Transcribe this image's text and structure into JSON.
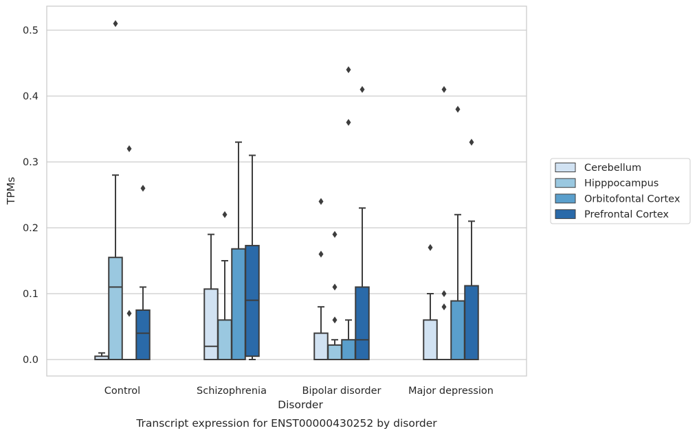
{
  "chart_data": {
    "type": "box",
    "title": "",
    "caption": "Transcript expression for ENST00000430252 by disorder",
    "xlabel": "Disorder",
    "ylabel": "TPMs",
    "ylim": [
      -0.025,
      0.537
    ],
    "yticks": [
      "0.0",
      "0.1",
      "0.2",
      "0.3",
      "0.4",
      "0.5"
    ],
    "ytick_values": [
      0.0,
      0.1,
      0.2,
      0.3,
      0.4,
      0.5
    ],
    "grid": "horizontal",
    "legend_position": "center-right outside",
    "categories": [
      "Control",
      "Schizophrenia",
      "Bipolar disorder",
      "Major depression"
    ],
    "series": [
      {
        "name": "Cerebellum",
        "color": "#d1e2f2",
        "boxes": [
          {
            "lower_whisker": 0.0,
            "q1": 0.0,
            "median": 0.0,
            "q3": 0.005,
            "upper_whisker": 0.01,
            "outliers": []
          },
          {
            "lower_whisker": 0.0,
            "q1": 0.0,
            "median": 0.02,
            "q3": 0.107,
            "upper_whisker": 0.19,
            "outliers": []
          },
          {
            "lower_whisker": 0.0,
            "q1": 0.0,
            "median": 0.0,
            "q3": 0.04,
            "upper_whisker": 0.08,
            "outliers": [
              0.16,
              0.24
            ]
          },
          {
            "lower_whisker": 0.0,
            "q1": 0.0,
            "median": 0.0,
            "q3": 0.06,
            "upper_whisker": 0.1,
            "outliers": [
              0.17
            ]
          }
        ]
      },
      {
        "name": "Hipppocampus",
        "color": "#9ac8e0",
        "boxes": [
          {
            "lower_whisker": 0.0,
            "q1": 0.0,
            "median": 0.11,
            "q3": 0.155,
            "upper_whisker": 0.28,
            "outliers": [
              0.51
            ]
          },
          {
            "lower_whisker": 0.0,
            "q1": 0.0,
            "median": 0.0,
            "q3": 0.06,
            "upper_whisker": 0.15,
            "outliers": [
              0.22
            ]
          },
          {
            "lower_whisker": 0.0,
            "q1": 0.0,
            "median": 0.0,
            "q3": 0.022,
            "upper_whisker": 0.03,
            "outliers": [
              0.06,
              0.11,
              0.19
            ]
          },
          {
            "lower_whisker": 0.0,
            "q1": 0.0,
            "median": 0.0,
            "q3": 0.0,
            "upper_whisker": 0.0,
            "outliers": [
              0.08,
              0.1,
              0.41
            ]
          }
        ]
      },
      {
        "name": "Orbitofontal Cortex",
        "color": "#5a9fcc",
        "boxes": [
          {
            "lower_whisker": 0.0,
            "q1": 0.0,
            "median": 0.0,
            "q3": 0.0,
            "upper_whisker": 0.0,
            "outliers": [
              0.07,
              0.32
            ]
          },
          {
            "lower_whisker": 0.0,
            "q1": 0.0,
            "median": 0.0,
            "q3": 0.168,
            "upper_whisker": 0.33,
            "outliers": []
          },
          {
            "lower_whisker": 0.0,
            "q1": 0.0,
            "median": 0.0,
            "q3": 0.03,
            "upper_whisker": 0.06,
            "outliers": [
              0.36,
              0.44
            ]
          },
          {
            "lower_whisker": 0.0,
            "q1": 0.0,
            "median": 0.0,
            "q3": 0.089,
            "upper_whisker": 0.22,
            "outliers": [
              0.38
            ]
          }
        ]
      },
      {
        "name": "Prefrontal Cortex",
        "color": "#2a6aa9",
        "boxes": [
          {
            "lower_whisker": 0.0,
            "q1": 0.0,
            "median": 0.04,
            "q3": 0.075,
            "upper_whisker": 0.11,
            "outliers": [
              0.26
            ]
          },
          {
            "lower_whisker": 0.0,
            "q1": 0.005,
            "median": 0.09,
            "q3": 0.173,
            "upper_whisker": 0.31,
            "outliers": []
          },
          {
            "lower_whisker": 0.0,
            "q1": 0.0,
            "median": 0.03,
            "q3": 0.11,
            "upper_whisker": 0.23,
            "outliers": [
              0.41
            ]
          },
          {
            "lower_whisker": 0.0,
            "q1": 0.0,
            "median": 0.0,
            "q3": 0.112,
            "upper_whisker": 0.21,
            "outliers": [
              0.33
            ]
          }
        ]
      }
    ]
  }
}
